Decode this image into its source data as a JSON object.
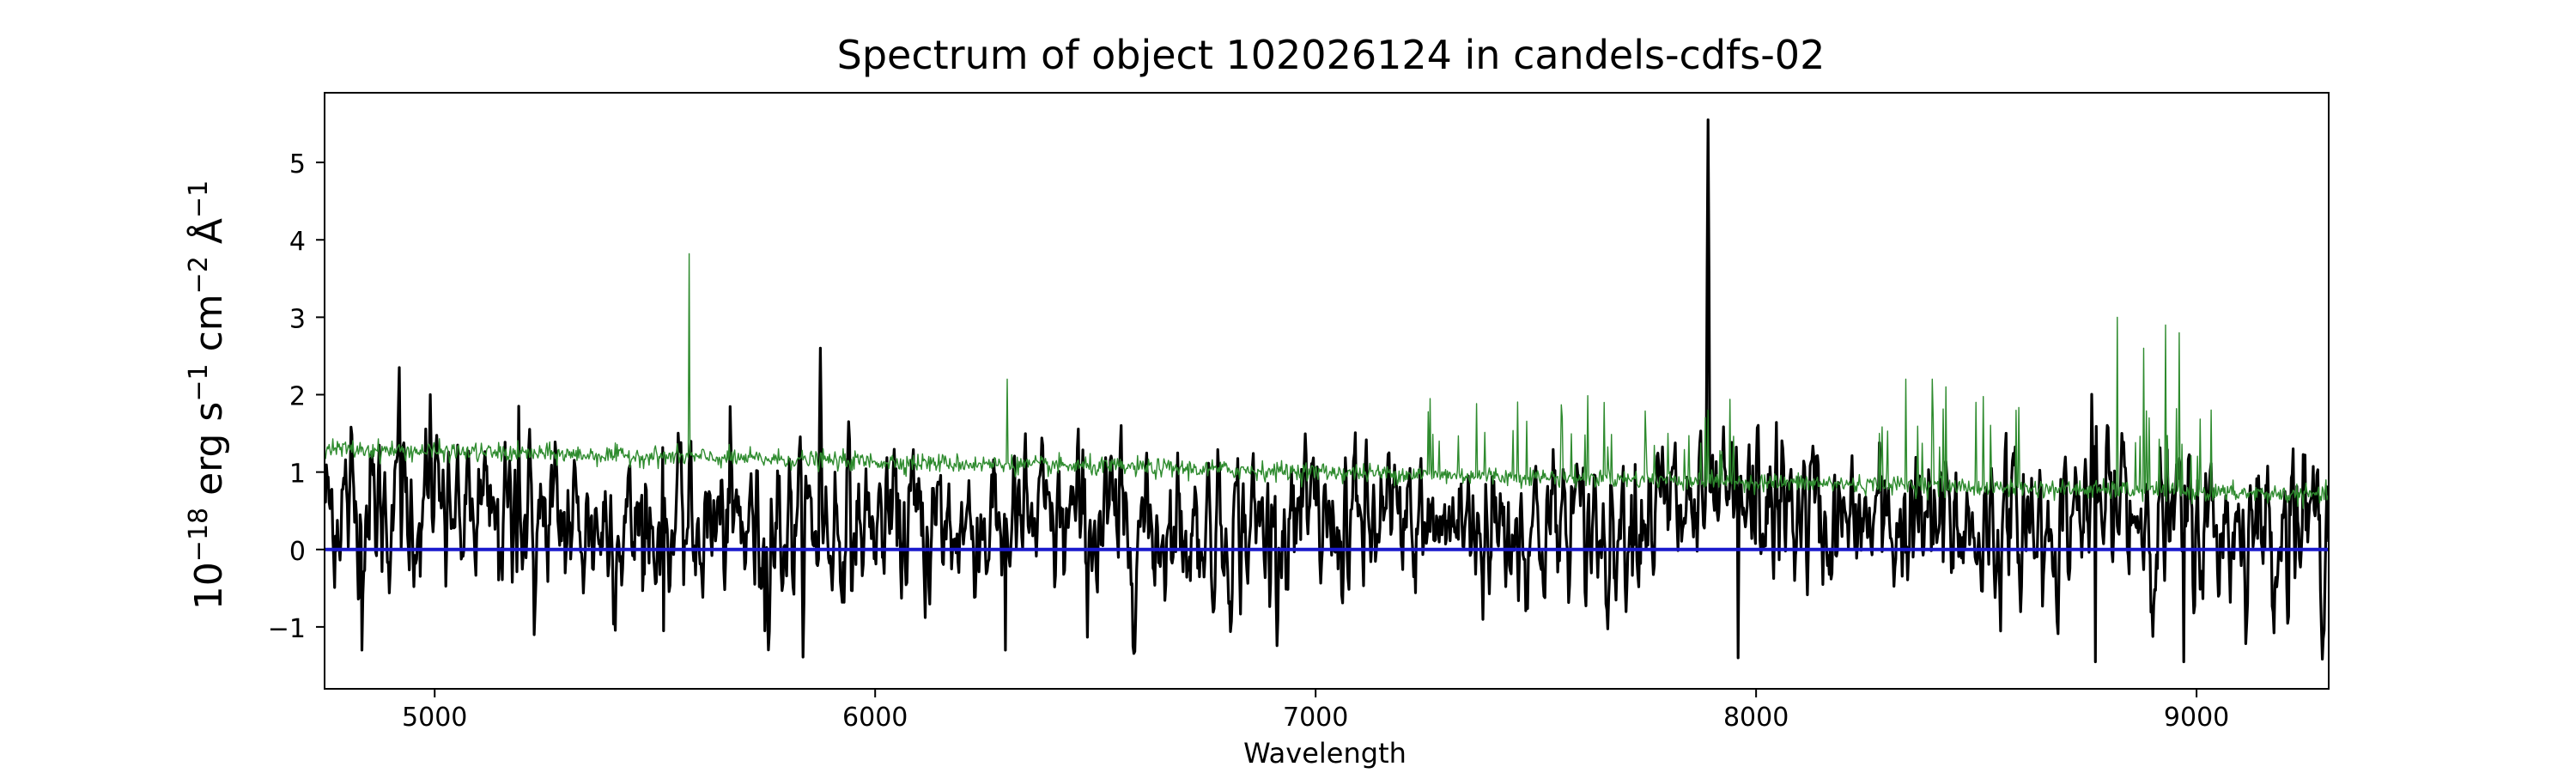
{
  "chart_data": {
    "type": "line",
    "title": "Spectrum of object 102026124 in candels-cdfs-02",
    "xlabel": "Wavelength",
    "ylabel_parts": {
      "base": "10",
      "exp1": "−18",
      "unit1": " erg s",
      "exp2": "−1",
      "unit2": " cm",
      "exp3": "−2",
      "unit3": " Å",
      "exp4": "−1"
    },
    "xlim": [
      4750,
      9300
    ],
    "ylim": [
      -1.8,
      5.9
    ],
    "xticks": [
      5000,
      6000,
      7000,
      8000,
      9000
    ],
    "yticks": [
      -1,
      0,
      1,
      2,
      3,
      4,
      5
    ],
    "grid": false,
    "series": [
      {
        "color": "#000000",
        "style": "thick",
        "baseline": 0.3,
        "noise": 0.5,
        "peaks": [
          {
            "x": 7890,
            "y": 5.55
          },
          {
            "x": 5875,
            "y": 2.6
          },
          {
            "x": 4920,
            "y": 2.35
          },
          {
            "x": 4990,
            "y": 2.0
          },
          {
            "x": 5190,
            "y": 1.85
          },
          {
            "x": 8770,
            "y": 2.0
          },
          {
            "x": 8830,
            "y": 1.5
          },
          {
            "x": 9220,
            "y": 1.3
          }
        ],
        "troughs": [
          {
            "x": 4835,
            "y": -1.3
          },
          {
            "x": 6295,
            "y": -1.3
          },
          {
            "x": 7960,
            "y": -1.4
          },
          {
            "x": 8770,
            "y": -1.45
          },
          {
            "x": 8970,
            "y": -1.45
          },
          {
            "x": 5225,
            "y": -1.1
          },
          {
            "x": 5520,
            "y": -1.05
          },
          {
            "x": 5750,
            "y": -1.05
          }
        ]
      },
      {
        "color": "#2e8b2e",
        "style": "thin",
        "description_level_start": 1.3,
        "description_level_end": 0.7,
        "noise": 0.06,
        "peaks": [
          {
            "x": 5578,
            "y": 3.82
          },
          {
            "x": 6300,
            "y": 2.2
          },
          {
            "x": 8820,
            "y": 3.0
          },
          {
            "x": 8930,
            "y": 2.9
          },
          {
            "x": 8960,
            "y": 2.8
          },
          {
            "x": 8880,
            "y": 2.6
          },
          {
            "x": 8340,
            "y": 2.2
          },
          {
            "x": 8400,
            "y": 2.2
          },
          {
            "x": 8430,
            "y": 2.1
          },
          {
            "x": 8500,
            "y": 1.9
          },
          {
            "x": 7890,
            "y": 1.8
          },
          {
            "x": 8280,
            "y": 1.5
          },
          {
            "x": 7280,
            "y": 1.4
          },
          {
            "x": 7750,
            "y": 1.4
          },
          {
            "x": 7800,
            "y": 1.5
          }
        ]
      },
      {
        "color": "#1a1acd",
        "style": "zero",
        "values_constant": 0
      }
    ]
  }
}
